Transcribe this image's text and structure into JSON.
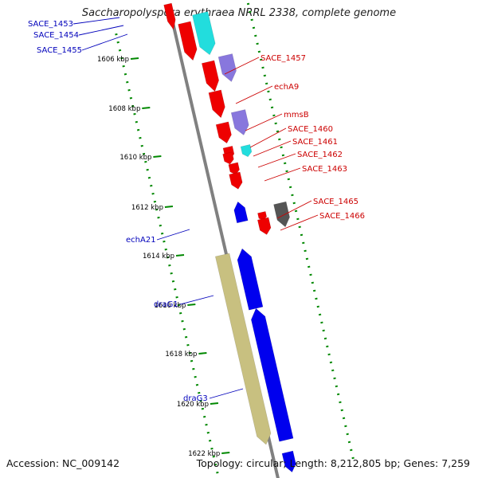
{
  "title": "Saccharopolyspora erythraea NRRL 2338, complete genome",
  "footer": {
    "accession": "Accession: NC_009142",
    "topology": "Topology: circular; Length: 8,212,805 bp; Genes: 7,259"
  },
  "colors": {
    "backbone": "#808080",
    "forward_gene": "#0000ee",
    "reverse_gene": "#ee0000",
    "cyan_feature": "#22dddd",
    "purple_feature": "#8877dd",
    "gray_feature": "#555555",
    "khaki_feature": "#c8c080",
    "tick": "#008800",
    "label_blue": "#0000bb",
    "label_red": "#cc0000"
  },
  "kbp_ticks": [
    "1606 kbp",
    "1608 kbp",
    "1610 kbp",
    "1612 kbp",
    "1614 kbp",
    "1616 kbp",
    "1618 kbp",
    "1620 kbp",
    "1622 kbp"
  ],
  "left_labels": [
    "SACE_1453",
    "SACE_1454",
    "SACE_1455",
    "echA21",
    "draG1",
    "draG3"
  ],
  "right_labels": [
    "SACE_1457",
    "echA9",
    "mmsB",
    "SACE_1460",
    "SACE_1461",
    "SACE_1462",
    "SACE_1463",
    "SACE_1465",
    "SACE_1466"
  ]
}
